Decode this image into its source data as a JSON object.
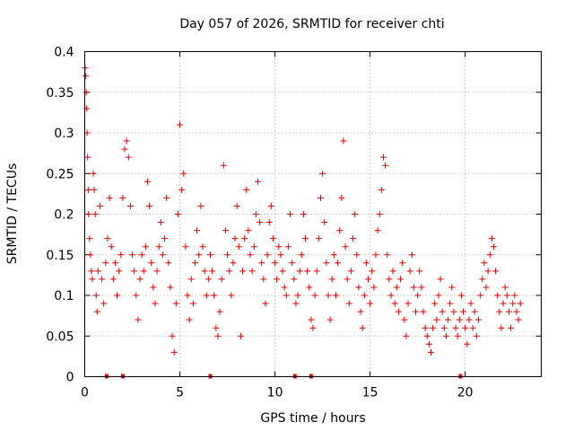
{
  "chart_data": {
    "type": "scatter",
    "title": "Day 057 of 2026, SRMTID for receiver chti",
    "xlabel": "GPS time / hours",
    "ylabel": "SRMTID / TECUs",
    "xlim": [
      0,
      24
    ],
    "ylim": [
      0,
      0.4
    ],
    "x_ticks": [
      0,
      5,
      10,
      15,
      20
    ],
    "x_tick_labels": [
      "0",
      "5",
      "10",
      "15",
      "20"
    ],
    "y_ticks": [
      0,
      0.05,
      0.1,
      0.15,
      0.2,
      0.25,
      0.3,
      0.35,
      0.4
    ],
    "y_tick_labels": [
      "0",
      "0.05",
      "0.1",
      "0.15",
      "0.2",
      "0.25",
      "0.3",
      "0.35",
      "0.4"
    ],
    "grid": true,
    "marker": "plus",
    "color": "#e00000",
    "zero_markers_x": [
      1.15,
      2.0,
      6.6,
      11.05,
      11.9,
      19.75
    ],
    "series": [
      {
        "name": "SRMTID",
        "points": [
          [
            0.02,
            0.38
          ],
          [
            0.05,
            0.37
          ],
          [
            0.08,
            0.35
          ],
          [
            0.1,
            0.33
          ],
          [
            0.12,
            0.3
          ],
          [
            0.15,
            0.27
          ],
          [
            0.18,
            0.23
          ],
          [
            0.2,
            0.2
          ],
          [
            0.25,
            0.17
          ],
          [
            0.3,
            0.15
          ],
          [
            0.35,
            0.13
          ],
          [
            0.4,
            0.12
          ],
          [
            0.45,
            0.25
          ],
          [
            0.5,
            0.23
          ],
          [
            0.55,
            0.2
          ],
          [
            0.6,
            0.1
          ],
          [
            0.65,
            0.08
          ],
          [
            0.7,
            0.13
          ],
          [
            0.8,
            0.21
          ],
          [
            0.9,
            0.12
          ],
          [
            1.0,
            0.09
          ],
          [
            1.1,
            0.14
          ],
          [
            1.2,
            0.17
          ],
          [
            1.3,
            0.22
          ],
          [
            1.4,
            0.16
          ],
          [
            1.5,
            0.12
          ],
          [
            1.6,
            0.14
          ],
          [
            1.7,
            0.1
          ],
          [
            1.8,
            0.13
          ],
          [
            1.9,
            0.15
          ],
          [
            2.0,
            0.22
          ],
          [
            2.1,
            0.28
          ],
          [
            2.2,
            0.29
          ],
          [
            2.3,
            0.27
          ],
          [
            2.4,
            0.21
          ],
          [
            2.5,
            0.15
          ],
          [
            2.6,
            0.13
          ],
          [
            2.7,
            0.1
          ],
          [
            2.8,
            0.07
          ],
          [
            2.9,
            0.12
          ],
          [
            3.0,
            0.15
          ],
          [
            3.1,
            0.13
          ],
          [
            3.2,
            0.16
          ],
          [
            3.3,
            0.24
          ],
          [
            3.4,
            0.21
          ],
          [
            3.5,
            0.14
          ],
          [
            3.6,
            0.11
          ],
          [
            3.7,
            0.09
          ],
          [
            3.8,
            0.13
          ],
          [
            3.9,
            0.16
          ],
          [
            4.0,
            0.19
          ],
          [
            4.1,
            0.15
          ],
          [
            4.2,
            0.17
          ],
          [
            4.3,
            0.22
          ],
          [
            4.4,
            0.14
          ],
          [
            4.5,
            0.11
          ],
          [
            4.6,
            0.05
          ],
          [
            4.7,
            0.03
          ],
          [
            4.8,
            0.09
          ],
          [
            4.9,
            0.2
          ],
          [
            5.0,
            0.31
          ],
          [
            5.1,
            0.23
          ],
          [
            5.2,
            0.25
          ],
          [
            5.3,
            0.16
          ],
          [
            5.4,
            0.1
          ],
          [
            5.5,
            0.07
          ],
          [
            5.6,
            0.12
          ],
          [
            5.7,
            0.09
          ],
          [
            5.8,
            0.14
          ],
          [
            5.9,
            0.18
          ],
          [
            6.0,
            0.15
          ],
          [
            6.1,
            0.21
          ],
          [
            6.2,
            0.16
          ],
          [
            6.3,
            0.13
          ],
          [
            6.4,
            0.1
          ],
          [
            6.5,
            0.12
          ],
          [
            6.6,
            0.15
          ],
          [
            6.7,
            0.13
          ],
          [
            6.8,
            0.1
          ],
          [
            6.9,
            0.06
          ],
          [
            7.0,
            0.05
          ],
          [
            7.1,
            0.08
          ],
          [
            7.2,
            0.12
          ],
          [
            7.3,
            0.26
          ],
          [
            7.4,
            0.18
          ],
          [
            7.5,
            0.15
          ],
          [
            7.6,
            0.13
          ],
          [
            7.7,
            0.1
          ],
          [
            7.8,
            0.14
          ],
          [
            7.9,
            0.17
          ],
          [
            8.0,
            0.21
          ],
          [
            8.1,
            0.16
          ],
          [
            8.2,
            0.05
          ],
          [
            8.3,
            0.13
          ],
          [
            8.4,
            0.17
          ],
          [
            8.5,
            0.23
          ],
          [
            8.6,
            0.18
          ],
          [
            8.7,
            0.15
          ],
          [
            8.8,
            0.13
          ],
          [
            8.9,
            0.16
          ],
          [
            9.0,
            0.2
          ],
          [
            9.1,
            0.24
          ],
          [
            9.2,
            0.19
          ],
          [
            9.3,
            0.14
          ],
          [
            9.4,
            0.12
          ],
          [
            9.5,
            0.09
          ],
          [
            9.6,
            0.15
          ],
          [
            9.7,
            0.19
          ],
          [
            9.8,
            0.21
          ],
          [
            9.9,
            0.17
          ],
          [
            10.0,
            0.14
          ],
          [
            10.1,
            0.12
          ],
          [
            10.2,
            0.16
          ],
          [
            10.3,
            0.15
          ],
          [
            10.4,
            0.13
          ],
          [
            10.5,
            0.11
          ],
          [
            10.6,
            0.1
          ],
          [
            10.7,
            0.16
          ],
          [
            10.8,
            0.2
          ],
          [
            10.9,
            0.14
          ],
          [
            11.0,
            0.12
          ],
          [
            11.1,
            0.09
          ],
          [
            11.2,
            0.1
          ],
          [
            11.3,
            0.13
          ],
          [
            11.4,
            0.15
          ],
          [
            11.5,
            0.2
          ],
          [
            11.6,
            0.17
          ],
          [
            11.7,
            0.13
          ],
          [
            11.8,
            0.11
          ],
          [
            11.9,
            0.07
          ],
          [
            12.0,
            0.06
          ],
          [
            12.1,
            0.1
          ],
          [
            12.2,
            0.13
          ],
          [
            12.3,
            0.17
          ],
          [
            12.4,
            0.22
          ],
          [
            12.5,
            0.25
          ],
          [
            12.6,
            0.19
          ],
          [
            12.7,
            0.14
          ],
          [
            12.8,
            0.1
          ],
          [
            12.9,
            0.07
          ],
          [
            13.0,
            0.12
          ],
          [
            13.1,
            0.15
          ],
          [
            13.2,
            0.1
          ],
          [
            13.3,
            0.14
          ],
          [
            13.4,
            0.18
          ],
          [
            13.5,
            0.22
          ],
          [
            13.6,
            0.29
          ],
          [
            13.7,
            0.16
          ],
          [
            13.8,
            0.12
          ],
          [
            13.9,
            0.09
          ],
          [
            14.0,
            0.13
          ],
          [
            14.1,
            0.17
          ],
          [
            14.2,
            0.2
          ],
          [
            14.3,
            0.15
          ],
          [
            14.4,
            0.11
          ],
          [
            14.5,
            0.08
          ],
          [
            14.6,
            0.06
          ],
          [
            14.7,
            0.1
          ],
          [
            14.8,
            0.14
          ],
          [
            14.9,
            0.12
          ],
          [
            15.0,
            0.09
          ],
          [
            15.1,
            0.13
          ],
          [
            15.2,
            0.11
          ],
          [
            15.3,
            0.15
          ],
          [
            15.4,
            0.18
          ],
          [
            15.5,
            0.2
          ],
          [
            15.6,
            0.23
          ],
          [
            15.7,
            0.27
          ],
          [
            15.8,
            0.26
          ],
          [
            15.9,
            0.15
          ],
          [
            16.0,
            0.12
          ],
          [
            16.1,
            0.1
          ],
          [
            16.2,
            0.13
          ],
          [
            16.3,
            0.09
          ],
          [
            16.4,
            0.11
          ],
          [
            16.5,
            0.08
          ],
          [
            16.6,
            0.12
          ],
          [
            16.7,
            0.14
          ],
          [
            16.8,
            0.07
          ],
          [
            16.9,
            0.05
          ],
          [
            17.0,
            0.09
          ],
          [
            17.1,
            0.13
          ],
          [
            17.2,
            0.15
          ],
          [
            17.3,
            0.11
          ],
          [
            17.4,
            0.08
          ],
          [
            17.5,
            0.1
          ],
          [
            17.6,
            0.13
          ],
          [
            17.7,
            0.11
          ],
          [
            17.8,
            0.08
          ],
          [
            17.9,
            0.06
          ],
          [
            18.0,
            0.05
          ],
          [
            18.1,
            0.04
          ],
          [
            18.2,
            0.03
          ],
          [
            18.3,
            0.06
          ],
          [
            18.4,
            0.09
          ],
          [
            18.5,
            0.07
          ],
          [
            18.6,
            0.1
          ],
          [
            18.7,
            0.12
          ],
          [
            18.8,
            0.08
          ],
          [
            18.9,
            0.06
          ],
          [
            19.0,
            0.05
          ],
          [
            19.1,
            0.07
          ],
          [
            19.2,
            0.09
          ],
          [
            19.3,
            0.11
          ],
          [
            19.4,
            0.08
          ],
          [
            19.5,
            0.06
          ],
          [
            19.6,
            0.05
          ],
          [
            19.7,
            0.07
          ],
          [
            19.8,
            0.1
          ],
          [
            19.9,
            0.08
          ],
          [
            20.0,
            0.06
          ],
          [
            20.1,
            0.04
          ],
          [
            20.2,
            0.07
          ],
          [
            20.3,
            0.09
          ],
          [
            20.4,
            0.06
          ],
          [
            20.5,
            0.08
          ],
          [
            20.6,
            0.05
          ],
          [
            20.7,
            0.07
          ],
          [
            20.8,
            0.1
          ],
          [
            20.9,
            0.12
          ],
          [
            21.0,
            0.14
          ],
          [
            21.1,
            0.11
          ],
          [
            21.2,
            0.13
          ],
          [
            21.3,
            0.15
          ],
          [
            21.4,
            0.17
          ],
          [
            21.5,
            0.16
          ],
          [
            21.6,
            0.13
          ],
          [
            21.7,
            0.1
          ],
          [
            21.8,
            0.08
          ],
          [
            21.9,
            0.06
          ],
          [
            22.0,
            0.09
          ],
          [
            22.1,
            0.11
          ],
          [
            22.2,
            0.1
          ],
          [
            22.3,
            0.08
          ],
          [
            22.4,
            0.06
          ],
          [
            22.5,
            0.09
          ],
          [
            22.6,
            0.1
          ],
          [
            22.7,
            0.08
          ],
          [
            22.8,
            0.07
          ],
          [
            22.9,
            0.09
          ]
        ]
      }
    ]
  }
}
